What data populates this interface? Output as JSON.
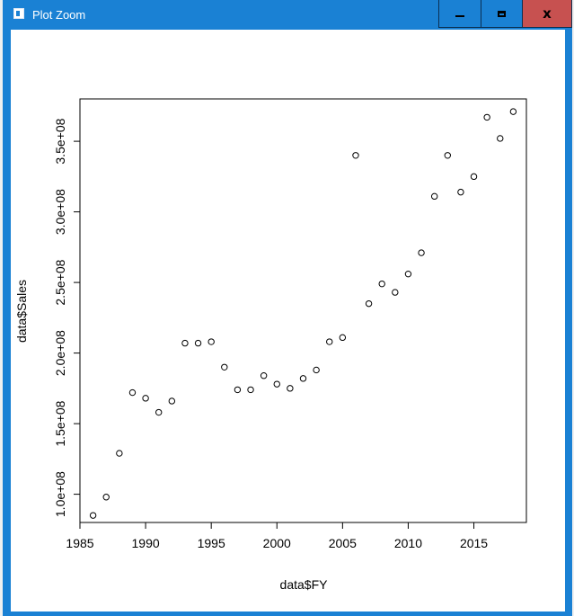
{
  "window": {
    "title": "Plot Zoom",
    "icon": "plot-window-icon",
    "controls": {
      "minimize": "minimize-icon",
      "maximize": "maximize-icon",
      "close": "close-icon",
      "close_glyph": "x"
    },
    "colors": {
      "titlebar": "#1a81d4",
      "close": "#c75150"
    }
  },
  "chart_data": {
    "type": "scatter",
    "xlabel": "data$FY",
    "ylabel": "data$Sales",
    "xlim": [
      1985,
      2019
    ],
    "ylim": [
      80000000,
      380000000
    ],
    "x_ticks": [
      1985,
      1990,
      1995,
      2000,
      2005,
      2010,
      2015
    ],
    "x_tick_labels": [
      "1985",
      "1990",
      "1995",
      "2000",
      "2005",
      "2010",
      "2015"
    ],
    "y_ticks": [
      100000000,
      150000000,
      200000000,
      250000000,
      300000000,
      350000000
    ],
    "y_tick_labels": [
      "1.0e+08",
      "1.5e+08",
      "2.0e+08",
      "2.5e+08",
      "3.0e+08",
      "3.5e+08"
    ],
    "grid": false,
    "x": [
      1986,
      1987,
      1988,
      1989,
      1990,
      1991,
      1992,
      1993,
      1994,
      1995,
      1996,
      1997,
      1998,
      1999,
      2000,
      2001,
      2002,
      2003,
      2004,
      2005,
      2006,
      2007,
      2008,
      2009,
      2010,
      2011,
      2012,
      2013,
      2014,
      2015,
      2016,
      2017,
      2018
    ],
    "y": [
      85000000,
      98000000,
      129000000,
      172000000,
      168000000,
      158000000,
      166000000,
      207000000,
      207000000,
      208000000,
      190000000,
      174000000,
      174000000,
      184000000,
      178000000,
      175000000,
      182000000,
      188000000,
      208000000,
      211000000,
      340000000,
      235000000,
      249000000,
      243000000,
      256000000,
      271000000,
      311000000,
      340000000,
      314000000,
      325000000,
      367000000,
      352000000,
      371000000
    ]
  }
}
